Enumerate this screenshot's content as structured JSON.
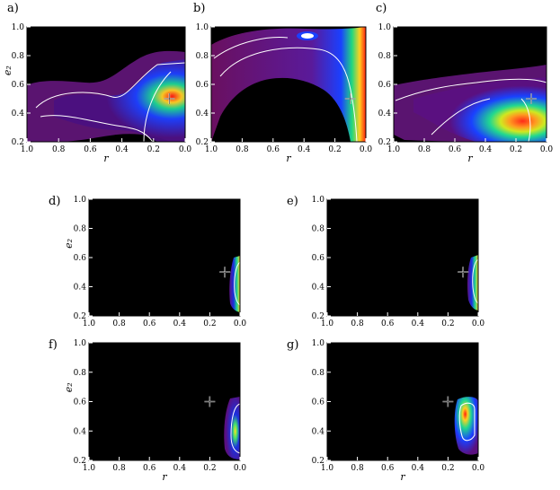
{
  "chart_data": [
    {
      "panel_label": "a)",
      "type": "heatmap",
      "xlabel": "r",
      "ylabel": "e₂",
      "xlim": [
        1.0,
        0.0
      ],
      "ylim": [
        0.2,
        1.0
      ],
      "xticks": [
        "1.0",
        "0.8",
        "0.6",
        "0.4",
        "0.2",
        "0.0"
      ],
      "yticks": [
        "0.2",
        "0.4",
        "0.6",
        "0.8",
        "1.0"
      ],
      "marker": {
        "symbol": "+",
        "x": 0.1,
        "y": 0.5
      },
      "peak": {
        "x": 0.02,
        "y": 0.6
      },
      "density_level": "high"
    },
    {
      "panel_label": "b)",
      "type": "heatmap",
      "xlabel": "r",
      "ylabel": "",
      "xlim": [
        1.0,
        0.0
      ],
      "ylim": [
        0.2,
        1.0
      ],
      "xticks": [
        "1.0",
        "0.8",
        "0.6",
        "0.4",
        "0.2",
        "0.0"
      ],
      "yticks": [
        "0.2",
        "0.4",
        "0.6",
        "0.8",
        "1.0"
      ],
      "marker": {
        "symbol": "+",
        "x": 0.1,
        "y": 0.5
      },
      "peak": {
        "x": 0.0,
        "y": 0.5
      },
      "density_level": "high"
    },
    {
      "panel_label": "c)",
      "type": "heatmap",
      "xlabel": "r",
      "ylabel": "",
      "xlim": [
        1.0,
        0.0
      ],
      "ylim": [
        0.2,
        1.0
      ],
      "xticks": [
        "1.0",
        "0.8",
        "0.6",
        "0.4",
        "0.2",
        "0.0"
      ],
      "yticks": [
        "0.2",
        "0.4",
        "0.6",
        "0.8",
        "1.0"
      ],
      "marker": {
        "symbol": "+",
        "x": 0.1,
        "y": 0.5
      },
      "peak": {
        "x": 0.2,
        "y": 0.42
      },
      "density_level": "high"
    },
    {
      "panel_label": "d)",
      "type": "heatmap",
      "xlabel": "",
      "ylabel": "e₂",
      "xlim": [
        1.0,
        0.0
      ],
      "ylim": [
        0.2,
        1.0
      ],
      "xticks": [
        "1.0",
        "0.8",
        "0.6",
        "0.4",
        "0.2",
        "0.0"
      ],
      "yticks": [
        "0.2",
        "0.4",
        "0.6",
        "0.8",
        "1.0"
      ],
      "marker": {
        "symbol": "+",
        "x": 0.1,
        "y": 0.5
      },
      "peak": {
        "x": 0.0,
        "y": 0.5
      },
      "density_level": "medium"
    },
    {
      "panel_label": "e)",
      "type": "heatmap",
      "xlabel": "",
      "ylabel": "",
      "xlim": [
        1.0,
        0.0
      ],
      "ylim": [
        0.2,
        1.0
      ],
      "xticks": [
        "1.0",
        "0.8",
        "0.6",
        "0.4",
        "0.2",
        "0.0"
      ],
      "yticks": [
        "0.2",
        "0.4",
        "0.6",
        "0.8",
        "1.0"
      ],
      "marker": {
        "symbol": "+",
        "x": 0.1,
        "y": 0.5
      },
      "peak": {
        "x": 0.0,
        "y": 0.52
      },
      "density_level": "medium"
    },
    {
      "panel_label": "f)",
      "type": "heatmap",
      "xlabel": "r",
      "ylabel": "e₂",
      "xlim": [
        1.0,
        0.0
      ],
      "ylim": [
        0.2,
        1.0
      ],
      "xticks": [
        "1.0",
        "0.8",
        "0.6",
        "0.4",
        "0.2",
        "0.0"
      ],
      "yticks": [
        "0.2",
        "0.4",
        "0.6",
        "0.8",
        "1.0"
      ],
      "marker": {
        "symbol": "+",
        "x": 0.2,
        "y": 0.6
      },
      "peak": {
        "x": 0.02,
        "y": 0.42
      },
      "density_level": "medium"
    },
    {
      "panel_label": "g)",
      "type": "heatmap",
      "xlabel": "r",
      "ylabel": "",
      "xlim": [
        1.0,
        0.0
      ],
      "ylim": [
        0.2,
        1.0
      ],
      "xticks": [
        "1.0",
        "0.8",
        "0.6",
        "0.4",
        "0.2",
        "0.0"
      ],
      "yticks": [
        "0.2",
        "0.4",
        "0.6",
        "0.8",
        "1.0"
      ],
      "marker": {
        "symbol": "+",
        "x": 0.2,
        "y": 0.6
      },
      "peak": {
        "x": 0.1,
        "y": 0.57
      },
      "density_level": "high"
    }
  ],
  "colors": {
    "background": "#000000",
    "low": "#5a0a5a",
    "mid": "#1a4cff",
    "high": "#19d4b0",
    "peak": "#ff2a1a",
    "contour": "#ffffff"
  }
}
